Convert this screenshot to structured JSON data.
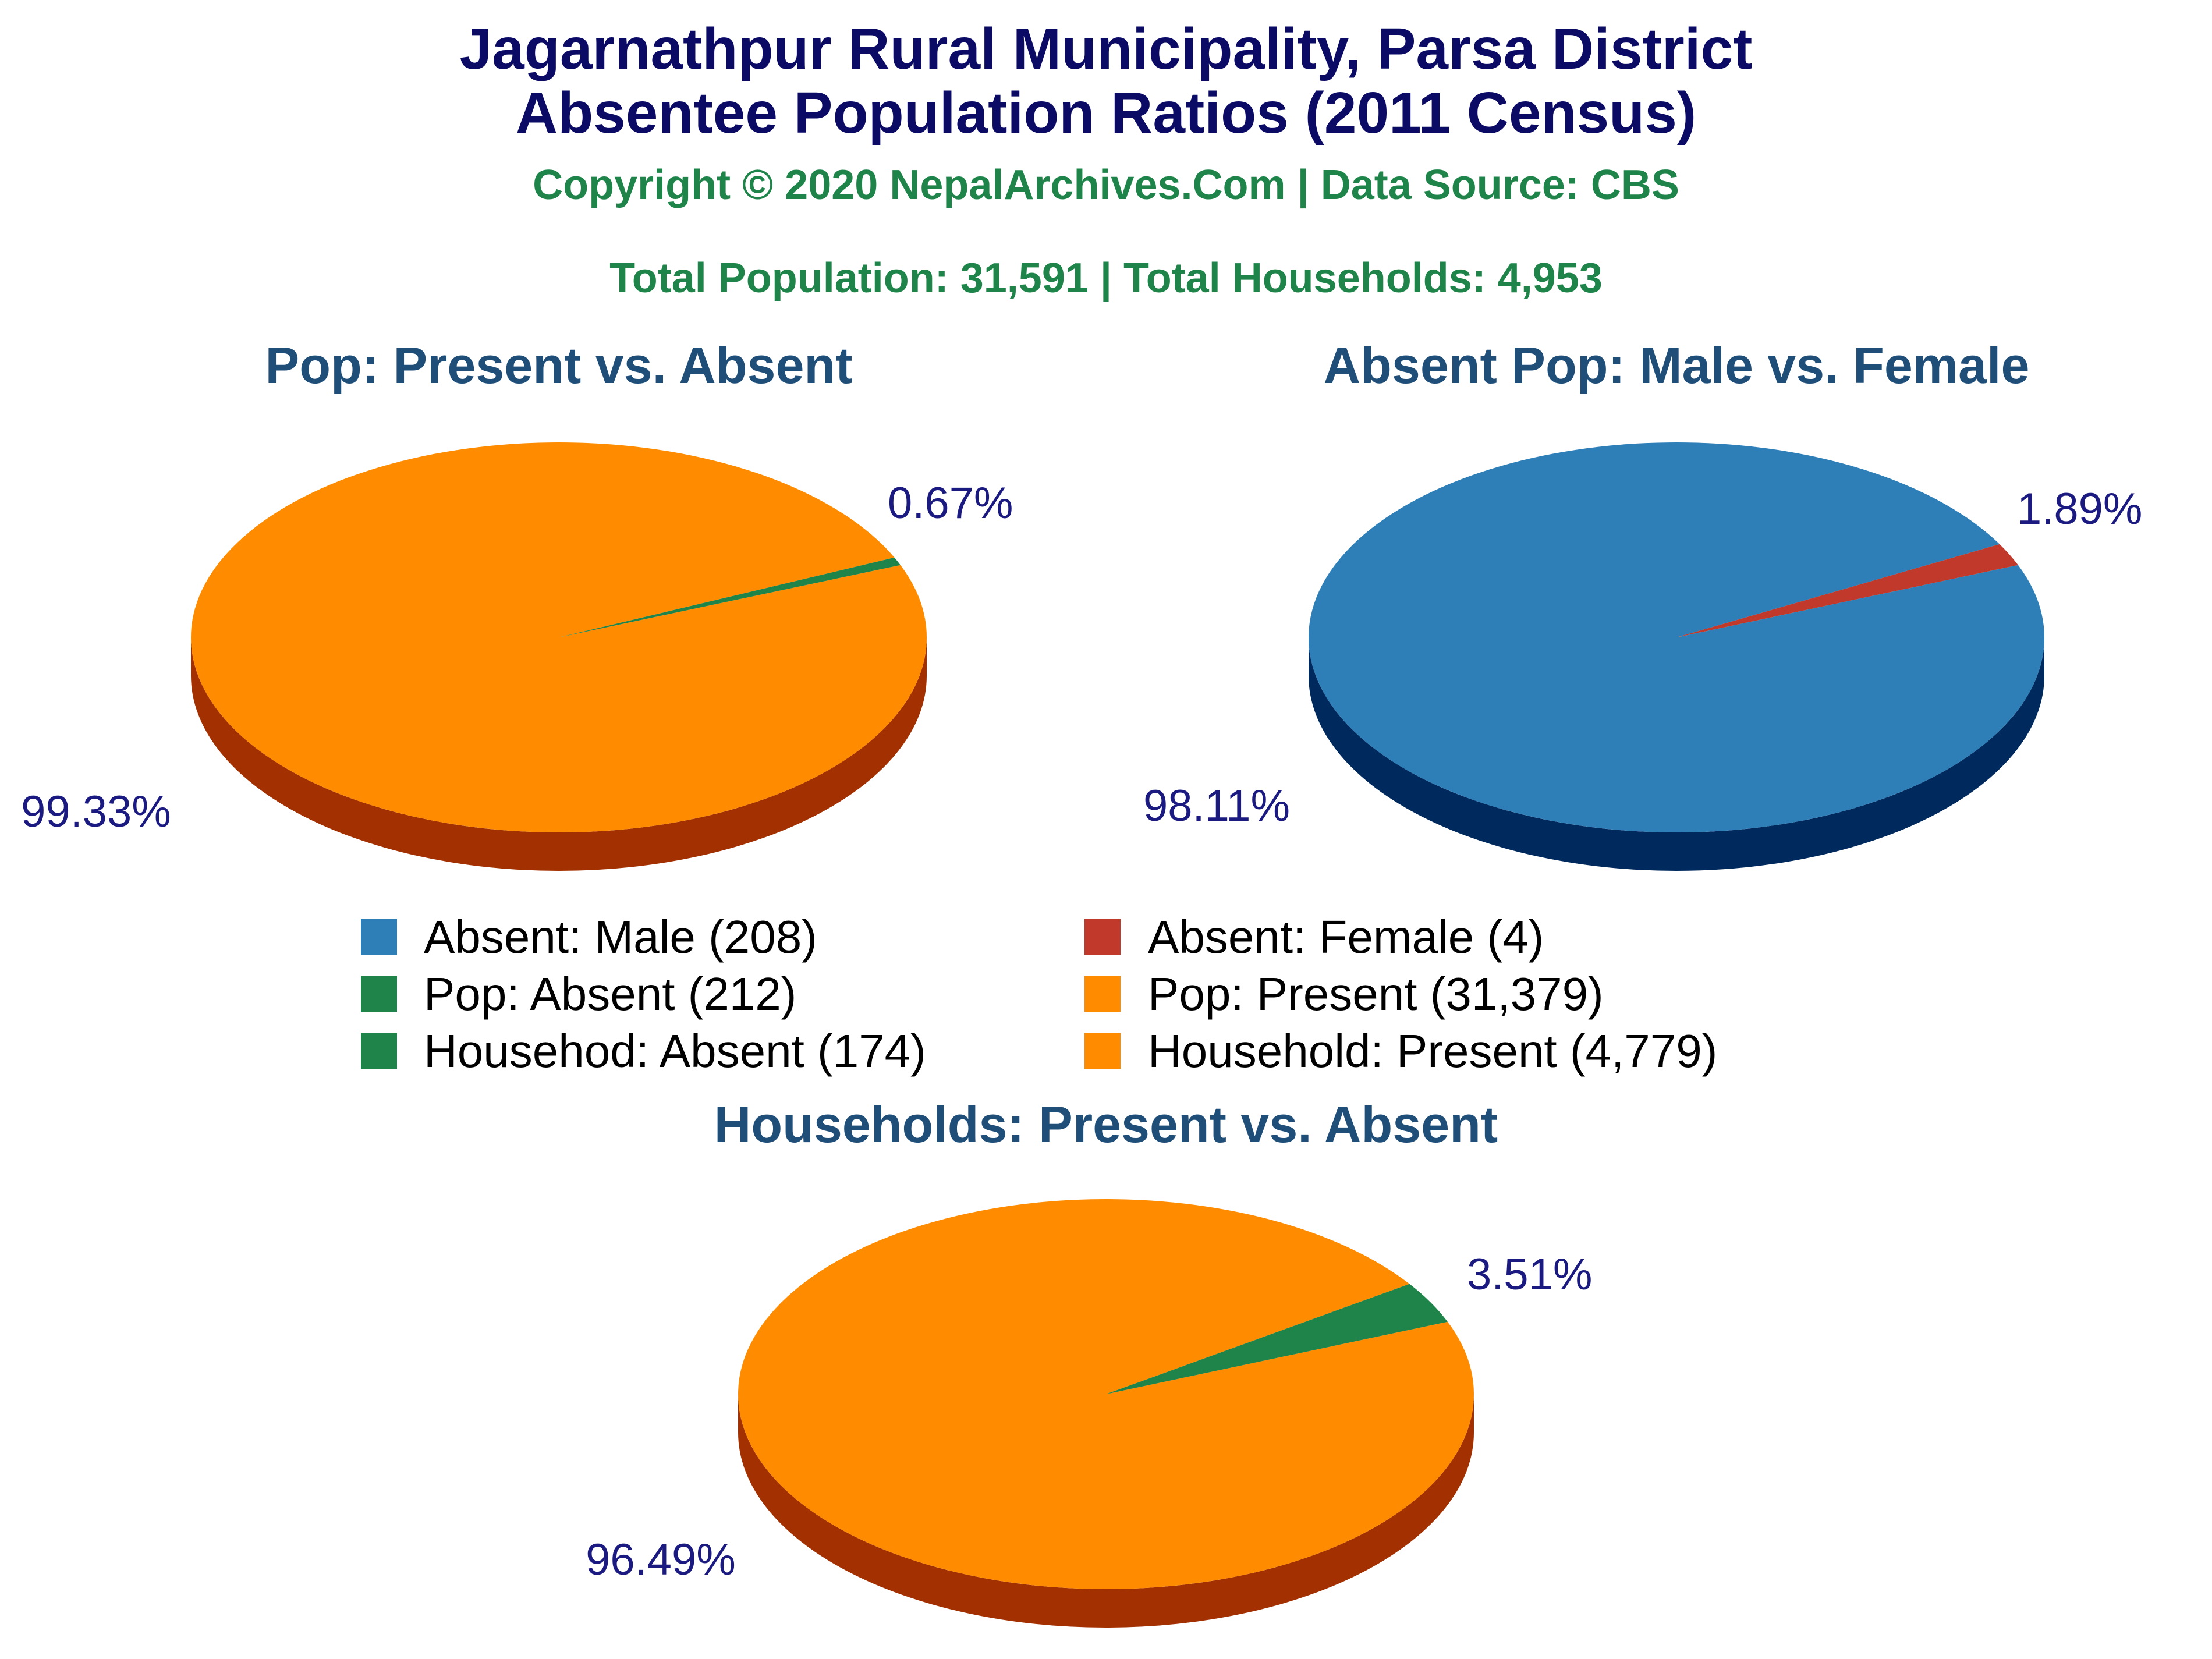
{
  "header": {
    "title_line1": "Jagarnathpur Rural Municipality, Parsa District",
    "title_line2": "Absentee Population Ratios (2011 Census)",
    "copyright": "Copyright © 2020 NepalArchives.Com | Data Source: CBS",
    "totals": "Total Population: 31,591 | Total Households: 4,953"
  },
  "colors": {
    "title": "#0b0b66",
    "green_text": "#1e8449",
    "chart_title": "#1f4e79",
    "pct_label": "#1a1a80",
    "legend_text": "#000000"
  },
  "legend": [
    {
      "label": "Absent: Male (208)",
      "color": "#2e7fb8"
    },
    {
      "label": "Absent: Female (4)",
      "color": "#c0392b"
    },
    {
      "label": "Pop: Absent (212)",
      "color": "#1e8449"
    },
    {
      "label": "Pop: Present (31,379)",
      "color": "#ff8c00"
    },
    {
      "label": "Househod: Absent (174)",
      "color": "#1e8449"
    },
    {
      "label": "Household: Present (4,779)",
      "color": "#ff8c00"
    }
  ],
  "chart_data": [
    {
      "type": "pie",
      "title": "Pop: Present vs. Absent",
      "slices": [
        {
          "label": "Pop: Present",
          "value": 31379,
          "percent": "99.33%",
          "color": "#ff8c00",
          "side_color": "#a33000"
        },
        {
          "label": "Pop: Absent",
          "value": 212,
          "percent": "0.67%",
          "color": "#1e8449",
          "side_color": "#0e4d2a"
        }
      ]
    },
    {
      "type": "pie",
      "title": "Absent Pop: Male vs. Female",
      "slices": [
        {
          "label": "Absent: Male",
          "value": 208,
          "percent": "98.11%",
          "color": "#2e7fb8",
          "side_color": "#002a5e"
        },
        {
          "label": "Absent: Female",
          "value": 4,
          "percent": "1.89%",
          "color": "#c0392b",
          "side_color": "#7a1f16"
        }
      ]
    },
    {
      "type": "pie",
      "title": "Households: Present vs. Absent",
      "slices": [
        {
          "label": "Household: Present",
          "value": 4779,
          "percent": "96.49%",
          "color": "#ff8c00",
          "side_color": "#a33000"
        },
        {
          "label": "Househod: Absent",
          "value": 174,
          "percent": "3.51%",
          "color": "#1e8449",
          "side_color": "#0e4d2a"
        }
      ]
    }
  ]
}
